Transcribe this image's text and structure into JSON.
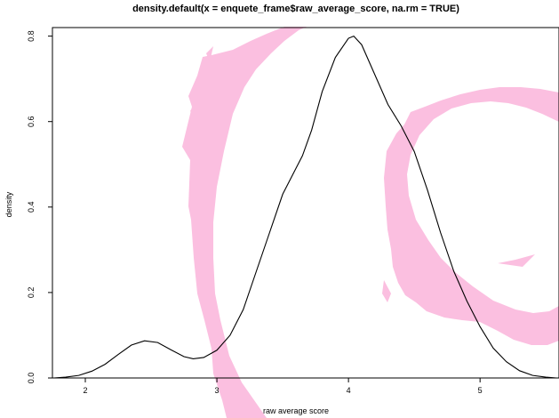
{
  "chart_data": {
    "type": "line",
    "title": "density.default(x = enquete_frame$raw_average_score, na.rm = TRUE)",
    "xlabel": "raw average score",
    "ylabel": "density",
    "xlim": [
      1.75,
      5.6
    ],
    "ylim": [
      0,
      0.82
    ],
    "x_ticks": [
      {
        "value": 2,
        "label": "2"
      },
      {
        "value": 3,
        "label": "3"
      },
      {
        "value": 4,
        "label": "4"
      },
      {
        "value": 5,
        "label": "5"
      }
    ],
    "y_ticks": [
      {
        "value": 0.0,
        "label": "0.0"
      },
      {
        "value": 0.2,
        "label": "0.2"
      },
      {
        "value": 0.4,
        "label": "0.4"
      },
      {
        "value": 0.6,
        "label": "0.6"
      },
      {
        "value": 0.8,
        "label": "0.8"
      }
    ],
    "baseline": 0,
    "grid": false,
    "series": [
      {
        "color": "#000000",
        "points": [
          [
            1.76,
            0.0
          ],
          [
            1.85,
            0.002
          ],
          [
            1.95,
            0.006
          ],
          [
            2.05,
            0.016
          ],
          [
            2.15,
            0.032
          ],
          [
            2.25,
            0.055
          ],
          [
            2.35,
            0.077
          ],
          [
            2.45,
            0.087
          ],
          [
            2.55,
            0.083
          ],
          [
            2.65,
            0.066
          ],
          [
            2.75,
            0.05
          ],
          [
            2.82,
            0.045
          ],
          [
            2.9,
            0.048
          ],
          [
            3.0,
            0.065
          ],
          [
            3.1,
            0.1
          ],
          [
            3.2,
            0.16
          ],
          [
            3.3,
            0.25
          ],
          [
            3.4,
            0.34
          ],
          [
            3.5,
            0.43
          ],
          [
            3.6,
            0.49
          ],
          [
            3.65,
            0.52
          ],
          [
            3.72,
            0.58
          ],
          [
            3.8,
            0.67
          ],
          [
            3.9,
            0.75
          ],
          [
            4.0,
            0.795
          ],
          [
            4.04,
            0.8
          ],
          [
            4.1,
            0.78
          ],
          [
            4.2,
            0.71
          ],
          [
            4.3,
            0.64
          ],
          [
            4.4,
            0.59
          ],
          [
            4.5,
            0.53
          ],
          [
            4.6,
            0.44
          ],
          [
            4.7,
            0.34
          ],
          [
            4.8,
            0.25
          ],
          [
            4.9,
            0.18
          ],
          [
            5.0,
            0.12
          ],
          [
            5.1,
            0.07
          ],
          [
            5.2,
            0.038
          ],
          [
            5.3,
            0.017
          ],
          [
            5.4,
            0.006
          ],
          [
            5.5,
            0.002
          ],
          [
            5.58,
            0.0
          ]
        ]
      }
    ],
    "watermark": {
      "name": "debian-swirl-logo",
      "color": "#fbbfe0"
    }
  }
}
